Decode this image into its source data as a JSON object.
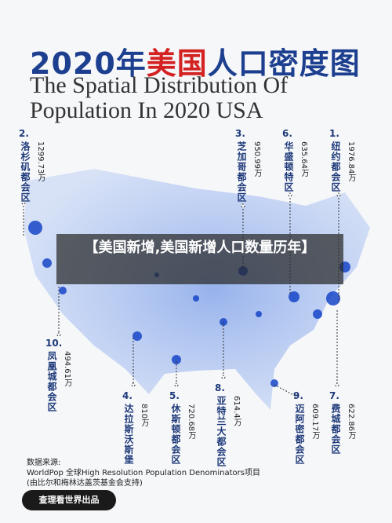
{
  "title": {
    "part1": "2020年",
    "part2": "美国",
    "part3": "人口密度图"
  },
  "subtitle": [
    "The Spatial Distribution Of",
    "Population In 2020 USA"
  ],
  "labels": [
    {
      "rank": "1.",
      "name": "纽约都会区",
      "value": "1976.84万"
    },
    {
      "rank": "2.",
      "name": "洛杉矶都会区",
      "value": "1299.73万"
    },
    {
      "rank": "3.",
      "name": "芝加哥都会区",
      "value": "950.99万"
    },
    {
      "rank": "4.",
      "name": "达拉斯沃斯堡",
      "value": "810万"
    },
    {
      "rank": "5.",
      "name": "休斯顿都会区",
      "value": "720.68万"
    },
    {
      "rank": "6.",
      "name": "华盛顿特区",
      "value": "635.64万"
    },
    {
      "rank": "7.",
      "name": "费城都会区",
      "value": "622.86万"
    },
    {
      "rank": "8.",
      "name": "亚特兰大都会区",
      "value": "614.4万"
    },
    {
      "rank": "9.",
      "name": "迈阿密都会区",
      "value": "609.17万"
    },
    {
      "rank": "10.",
      "name": "凤凰城都会区",
      "value": "494.61万"
    }
  ],
  "banner": "【美国新增,美国新增人口数量历年】",
  "source": [
    "数据来源:",
    "WorldPop 全球High Resolution Population Denominators项目",
    "(由比尔和梅林达盖茨基金会支持)"
  ],
  "brand": "查理看世界出品"
}
